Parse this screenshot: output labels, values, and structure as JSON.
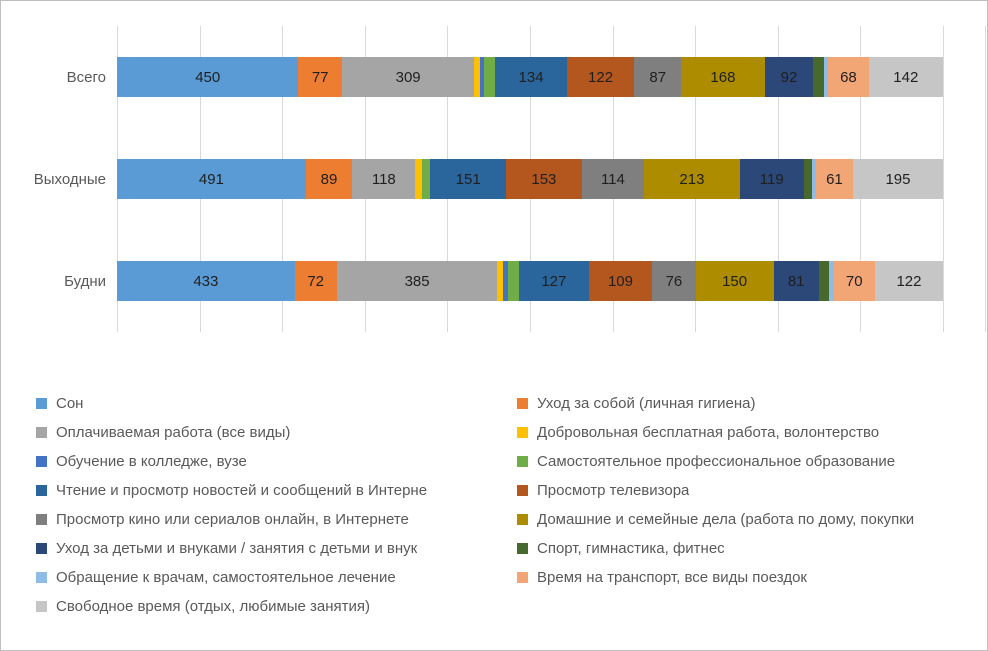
{
  "chart_data": {
    "type": "bar",
    "subtype": "horizontal-stacked-100",
    "title": "",
    "xlabel": "",
    "ylabel": "",
    "grid": "vertical gridlines, 10 equal intervals across bar span",
    "legend_position": "bottom, two columns",
    "value_labels": "shown on major segments, hidden on narrow segments",
    "categories": [
      "Всего",
      "Выходные",
      "Будни"
    ],
    "series": [
      {
        "name": "Сон",
        "color": "#5B9BD5",
        "values": [
          450,
          491,
          433
        ],
        "labeled": true
      },
      {
        "name": "Уход за собой (личная гигиена)",
        "color": "#ED7D31",
        "values": [
          77,
          89,
          72
        ],
        "labeled": true
      },
      {
        "name": "Оплачиваемая работа (все виды)",
        "color": "#A5A5A5",
        "values": [
          309,
          118,
          385
        ],
        "labeled": true
      },
      {
        "name": "Добровольная бесплатная работа, волонтерство",
        "color": "#FFC000",
        "values": [
          15,
          19,
          15
        ],
        "labeled": false
      },
      {
        "name": "Обучение в колледже, вузе",
        "color": "#4472C4",
        "values": [
          13,
          2,
          15
        ],
        "labeled": false
      },
      {
        "name": "Самостоятельное профессиональное образование",
        "color": "#70AD47",
        "values": [
          32,
          24,
          31
        ],
        "labeled": false
      },
      {
        "name": "Чтение и просмотр новостей и сообщений в Интерне",
        "color": "#2A669C",
        "values": [
          134,
          151,
          127
        ],
        "labeled": true
      },
      {
        "name": "Просмотр телевизора",
        "color": "#B4571E",
        "values": [
          122,
          153,
          109
        ],
        "labeled": true
      },
      {
        "name": "Просмотр кино или сериалов онлайн, в Интернете",
        "color": "#7F7F7F",
        "values": [
          87,
          114,
          76
        ],
        "labeled": true
      },
      {
        "name": "Домашние и семейные дела (работа по дому, покупки",
        "color": "#AD8C00",
        "values": [
          168,
          213,
          150
        ],
        "labeled": true
      },
      {
        "name": "Уход за детьми и внуками / занятия с детьми и внук",
        "color": "#2B4878",
        "values": [
          92,
          119,
          81
        ],
        "labeled": true
      },
      {
        "name": "Спорт, гимнастика, фитнес",
        "color": "#47692D",
        "values": [
          30,
          26,
          29
        ],
        "labeled": false
      },
      {
        "name": "Обращение к врачам, самостоятельное лечение",
        "color": "#8FBCE6",
        "values": [
          13,
          11,
          13
        ],
        "labeled": false
      },
      {
        "name": "Время на транспорт, все виды поездок",
        "color": "#F2A575",
        "values": [
          68,
          61,
          70
        ],
        "labeled": true
      },
      {
        "name": "Свободное время (отдых, любимые занятия)",
        "color": "#C6C6C6",
        "values": [
          142,
          195,
          122
        ],
        "labeled": true
      }
    ]
  },
  "styles": {
    "gridline_color": "#D9D9D9",
    "chart_border_color": "#BFBFBF",
    "category_label_color": "#595959",
    "value_label_color": "#1F1F1F",
    "legend_text_color": "#595959"
  }
}
